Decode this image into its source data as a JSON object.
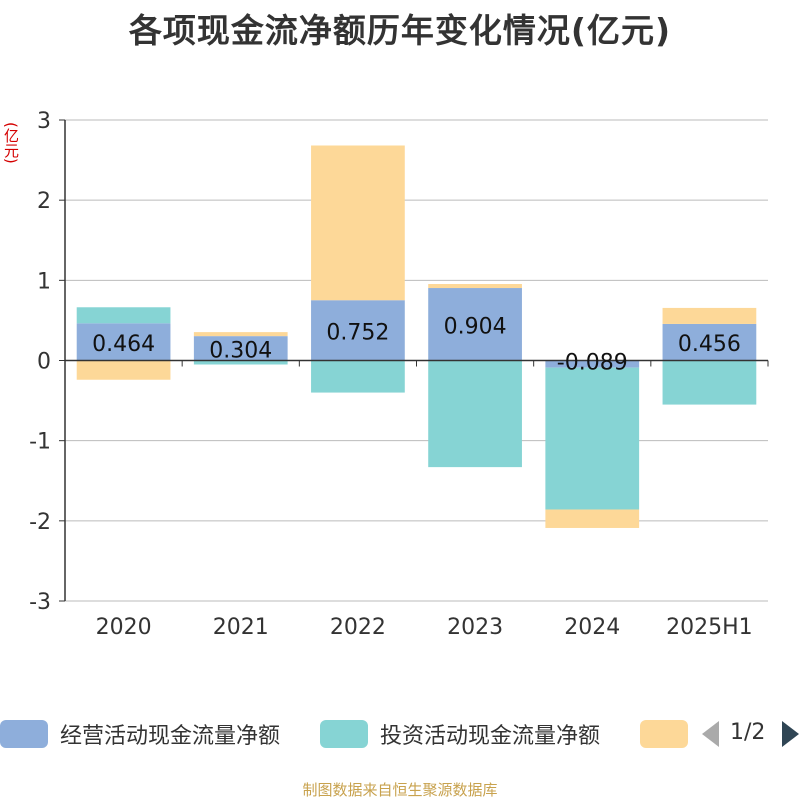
{
  "title": "各项现金流净额历年变化情况(亿元)",
  "unit_label": "(亿元)",
  "source": "制图数据来自恒生聚源数据库",
  "pager": "1/2",
  "colors": {
    "operating": "#8eaedb",
    "investing": "#86d4d4",
    "financing": "#fdd898",
    "axis": "#333333",
    "grid": "#bbbbbb"
  },
  "chart_data": {
    "type": "bar",
    "stacked": true,
    "title": "各项现金流净额历年变化情况(亿元)",
    "ylabel": "(亿元)",
    "ylim": [
      -3,
      3
    ],
    "yticks": [
      3,
      2,
      1,
      0,
      -1,
      -2,
      -3
    ],
    "grid": true,
    "legend_position": "bottom",
    "categories": [
      "2020",
      "2021",
      "2022",
      "2023",
      "2024",
      "2025H1"
    ],
    "series": [
      {
        "name": "经营活动现金流量净额",
        "values": [
          0.464,
          0.304,
          0.752,
          0.904,
          -0.089,
          0.456
        ]
      },
      {
        "name": "投资活动现金流量净额",
        "values": [
          0.2,
          -0.05,
          -0.4,
          -1.33,
          -1.77,
          -0.55
        ]
      },
      {
        "name": "",
        "values": [
          -0.24,
          0.05,
          1.93,
          0.05,
          -0.23,
          0.2
        ]
      }
    ],
    "data_labels": [
      "0.464",
      "0.304",
      "0.752",
      "0.904",
      "-0.089",
      "0.456"
    ]
  }
}
